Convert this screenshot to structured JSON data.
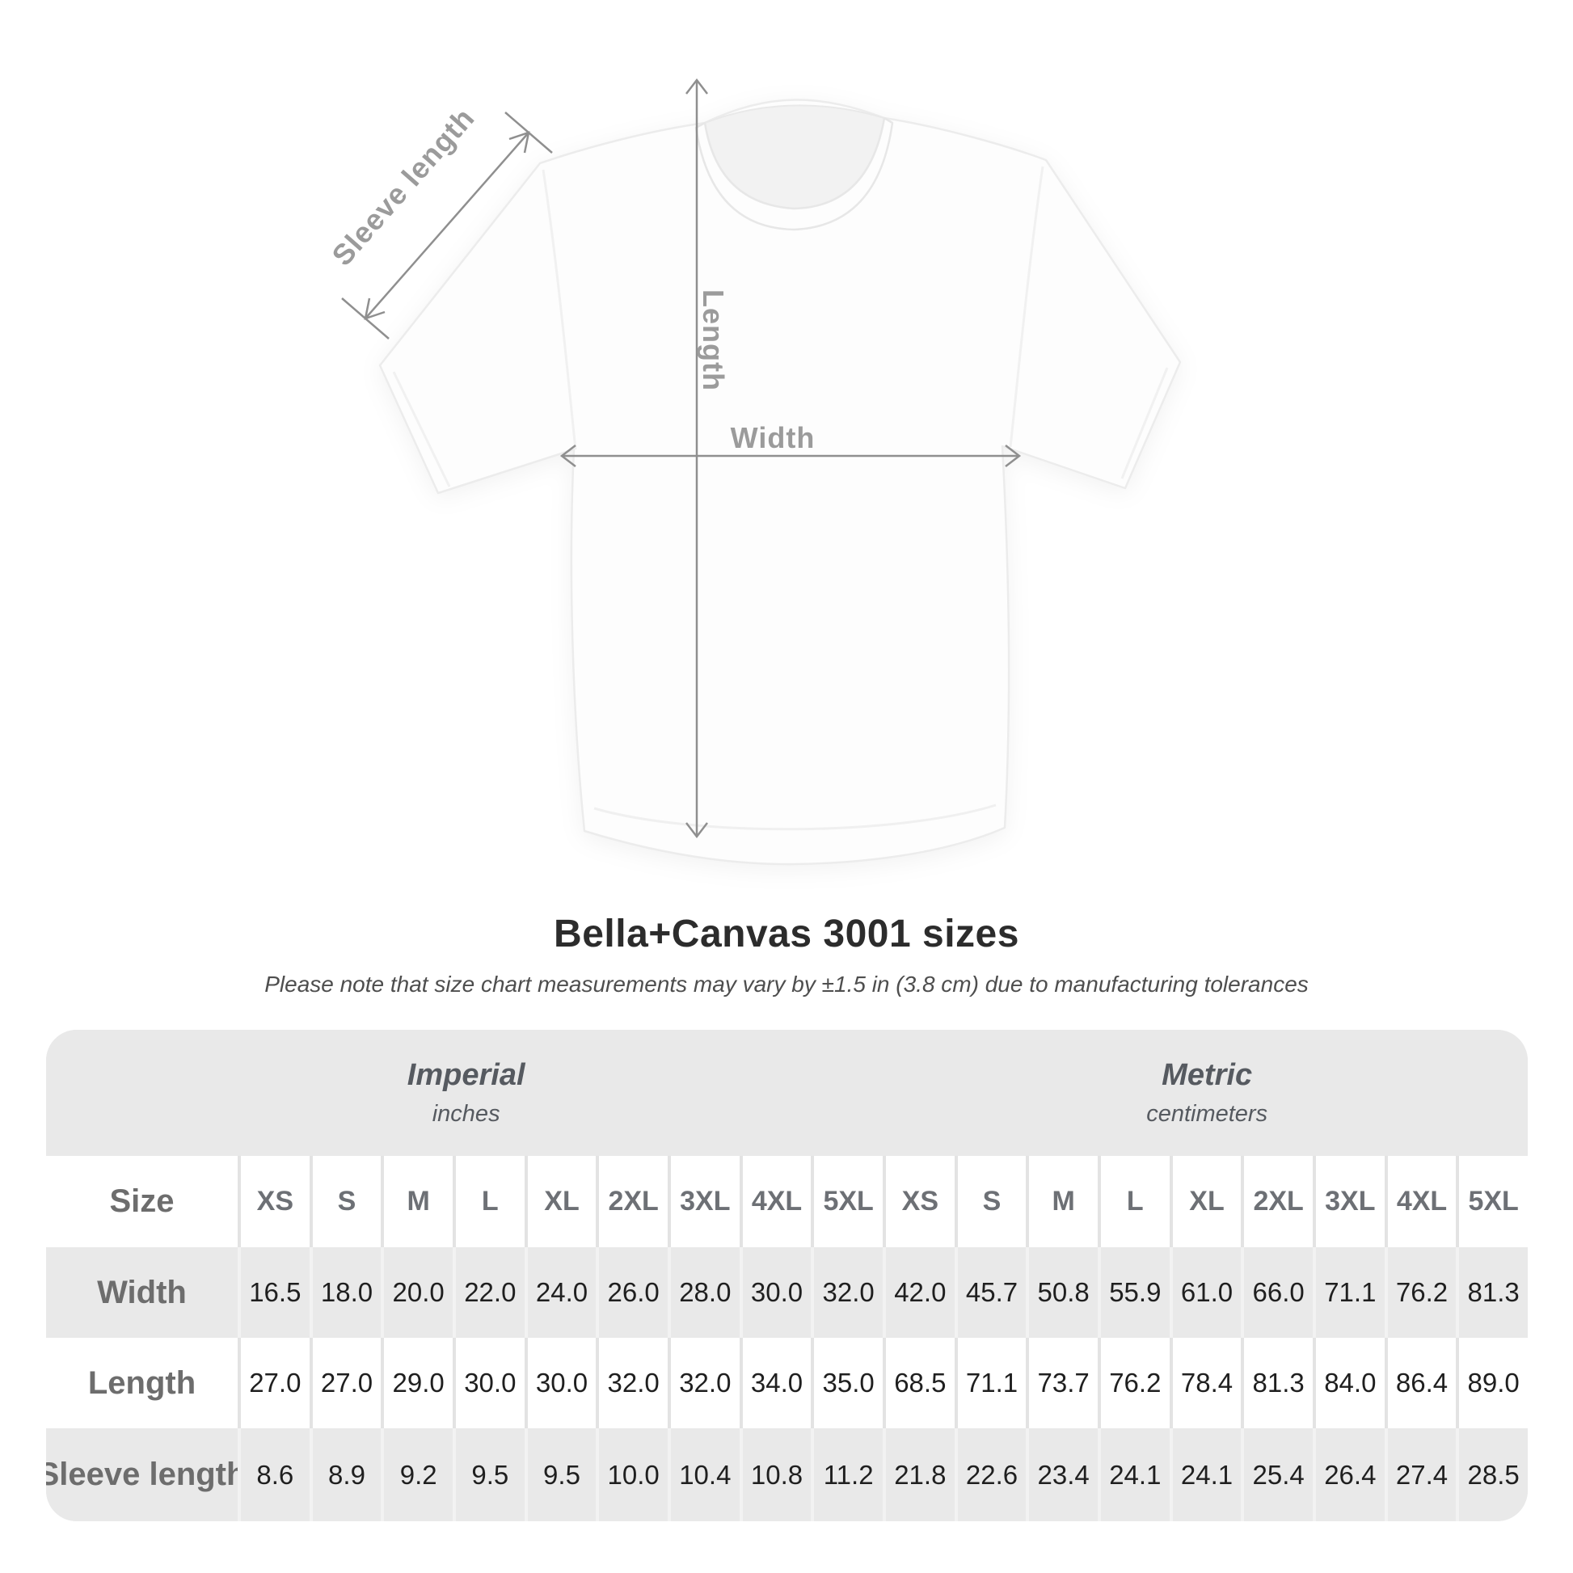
{
  "title": "Bella+Canvas 3001 sizes",
  "subtitle": "Please note that size chart measurements may vary by ±1.5 in (3.8 cm) due to manufacturing tolerances",
  "diagram": {
    "sleeve_label": "Sleeve length",
    "length_label": "Length",
    "width_label": "Width"
  },
  "colors": {
    "annotation_gray": "#9b9b9b",
    "arrow_gray": "#8f8f8f",
    "table_stripe_gray": "#e9e9e9",
    "header_text_gray": "#6d7075",
    "value_text": "#1f1f1f",
    "title_text": "#2c2c2c"
  },
  "table": {
    "size_col_header": "Size",
    "unit_groups": [
      {
        "name": "Imperial",
        "unit": "inches"
      },
      {
        "name": "Metric",
        "unit": "centimeters"
      }
    ],
    "sizes": [
      "XS",
      "S",
      "M",
      "L",
      "XL",
      "2XL",
      "3XL",
      "4XL",
      "5XL"
    ],
    "rows": [
      {
        "label": "Width",
        "imperial": [
          "16.5",
          "18.0",
          "20.0",
          "22.0",
          "24.0",
          "26.0",
          "28.0",
          "30.0",
          "32.0"
        ],
        "metric": [
          "42.0",
          "45.7",
          "50.8",
          "55.9",
          "61.0",
          "66.0",
          "71.1",
          "76.2",
          "81.3"
        ]
      },
      {
        "label": "Length",
        "imperial": [
          "27.0",
          "27.0",
          "29.0",
          "30.0",
          "30.0",
          "32.0",
          "32.0",
          "34.0",
          "35.0"
        ],
        "metric": [
          "68.5",
          "71.1",
          "73.7",
          "76.2",
          "78.4",
          "81.3",
          "84.0",
          "86.4",
          "89.0"
        ]
      },
      {
        "label": "Sleeve length",
        "imperial": [
          "8.6",
          "8.9",
          "9.2",
          "9.5",
          "9.5",
          "10.0",
          "10.4",
          "10.8",
          "11.2"
        ],
        "metric": [
          "21.8",
          "22.6",
          "23.4",
          "24.1",
          "24.1",
          "25.4",
          "26.4",
          "27.4",
          "28.5"
        ]
      }
    ]
  },
  "chart_data": {
    "type": "table",
    "title": "Bella+Canvas 3001 sizes",
    "column_groups": [
      "Imperial (inches)",
      "Metric (centimeters)"
    ],
    "columns": [
      "Size",
      "XS",
      "S",
      "M",
      "L",
      "XL",
      "2XL",
      "3XL",
      "4XL",
      "5XL",
      "XS",
      "S",
      "M",
      "L",
      "XL",
      "2XL",
      "3XL",
      "4XL",
      "5XL"
    ],
    "rows": [
      [
        "Width",
        16.5,
        18.0,
        20.0,
        22.0,
        24.0,
        26.0,
        28.0,
        30.0,
        32.0,
        42.0,
        45.7,
        50.8,
        55.9,
        61.0,
        66.0,
        71.1,
        76.2,
        81.3
      ],
      [
        "Length",
        27.0,
        27.0,
        29.0,
        30.0,
        30.0,
        32.0,
        32.0,
        34.0,
        35.0,
        68.5,
        71.1,
        73.7,
        76.2,
        78.4,
        81.3,
        84.0,
        86.4,
        89.0
      ],
      [
        "Sleeve length",
        8.6,
        8.9,
        9.2,
        9.5,
        9.5,
        10.0,
        10.4,
        10.8,
        11.2,
        21.8,
        22.6,
        23.4,
        24.1,
        24.1,
        25.4,
        26.4,
        27.4,
        28.5
      ]
    ]
  }
}
